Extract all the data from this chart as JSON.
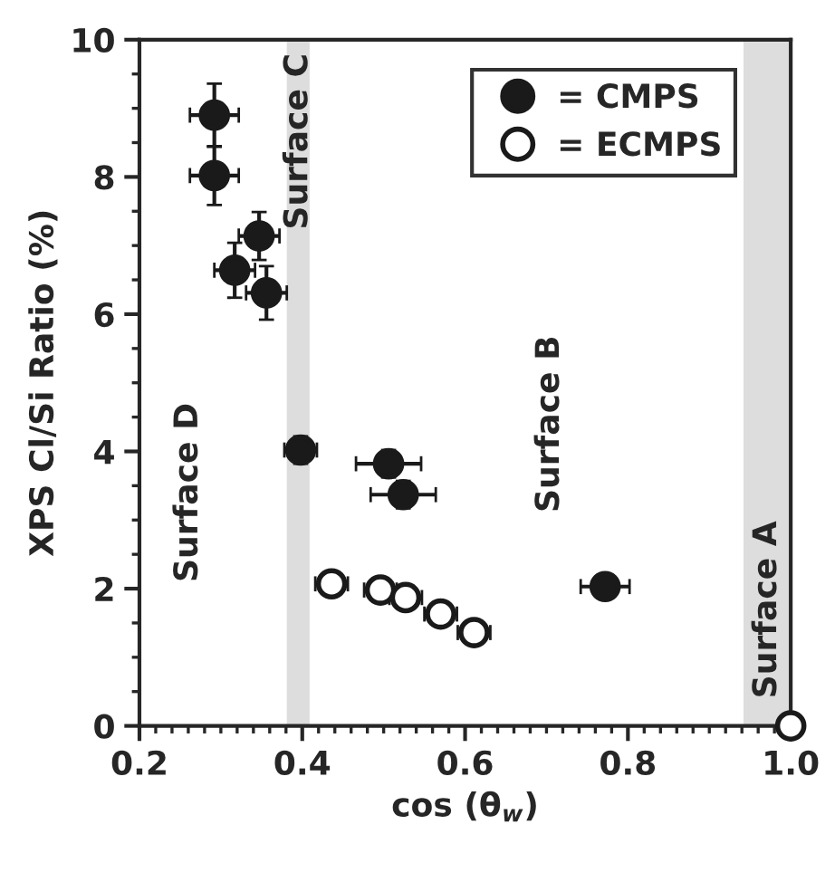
{
  "chart_data": {
    "type": "scatter",
    "xlabel": "cos (θ$_{w}$)",
    "ylabel": "XPS Cl/Si Ratio (%)",
    "xlim": [
      0.2,
      1.0
    ],
    "xticks": [
      0.2,
      0.4,
      0.6,
      0.8,
      {
        "value": 1.0,
        "label": "1.0"
      }
    ],
    "ylim": [
      0,
      10
    ],
    "yticks": [
      0,
      2,
      4,
      6,
      8,
      10
    ],
    "grid": false,
    "legend": "top right",
    "marker": "circle",
    "series": [
      {
        "name": "= CMPS",
        "color": "#1a1a1a",
        "x": [
          0.292,
          0.292,
          0.347,
          0.317,
          0.356,
          0.398,
          0.506,
          0.524,
          0.772
        ],
        "values": [
          8.9,
          8.02,
          7.14,
          6.64,
          6.31,
          4.02,
          3.82,
          3.37,
          2.03
        ],
        "errors": [
          0.46,
          0.43,
          0.35,
          0.4,
          0.39,
          0.2,
          0.2,
          0.2,
          0.15
        ],
        "xerrors": [
          0.03,
          0.03,
          0.025,
          0.025,
          0.025,
          0.02,
          0.04,
          0.04,
          0.03
        ]
      },
      {
        "name": "= ECMPS",
        "color": "#ffffff",
        "x": [
          0.436,
          0.496,
          0.527,
          0.57,
          0.611,
          1.0
        ],
        "values": [
          2.07,
          1.98,
          1.87,
          1.63,
          1.36,
          0
        ],
        "errors": [
          0.1,
          0.1,
          0.1,
          0.1,
          0.1,
          null
        ],
        "xerrors": [
          0.02,
          0.02,
          0.02,
          0.02,
          0.02,
          null
        ]
      }
    ],
    "bands": [
      {
        "axis": "x",
        "from": 0.381,
        "to": 0.409,
        "label": "Surface C",
        "color": "#dddddd"
      },
      {
        "axis": "x",
        "from": 0.942,
        "to": 1.0,
        "label": "Surface A",
        "color": "#dddddd"
      }
    ],
    "annotations": [
      "Surface D",
      "Surface B"
    ]
  }
}
